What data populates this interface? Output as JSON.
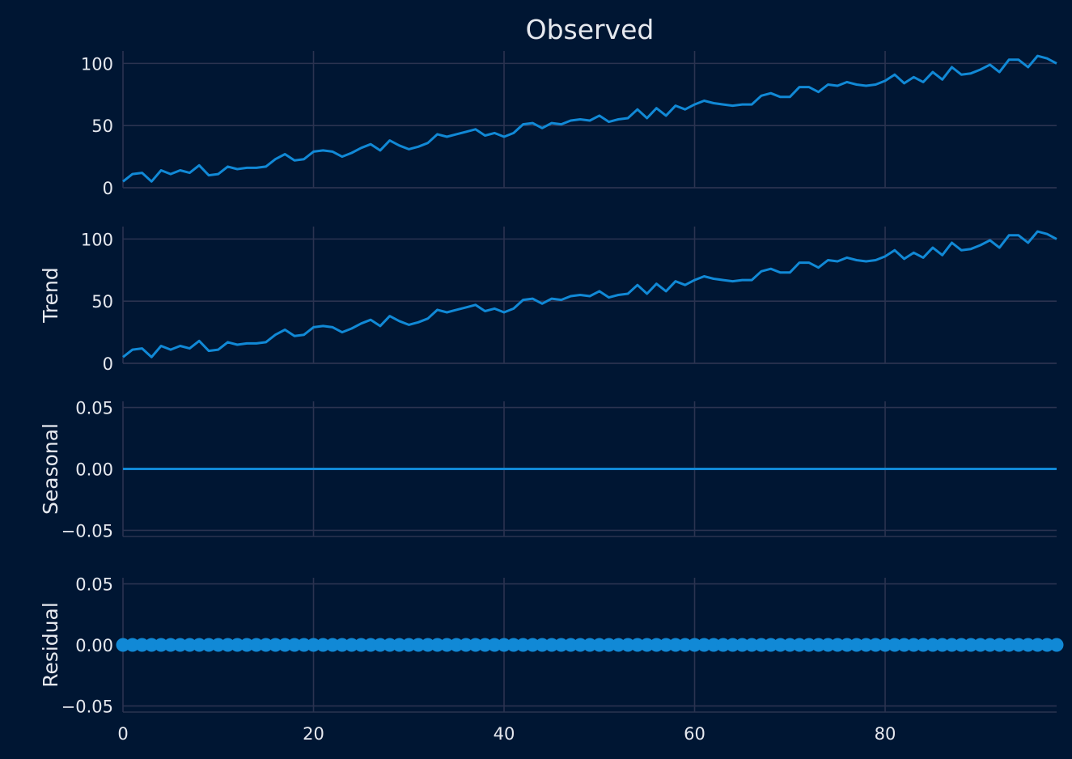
{
  "chart_data": {
    "type": "line",
    "title": "Observed",
    "colors": {
      "background": "#001633",
      "line": "#1189d6",
      "grid": "#2b3350",
      "text": "#e6e9ef"
    },
    "grid": true,
    "x": {
      "range": [
        0,
        98
      ],
      "ticks": [
        0,
        20,
        40,
        60,
        80
      ],
      "tick_labels": [
        "0",
        "20",
        "40",
        "60",
        "80"
      ]
    },
    "panels": [
      {
        "id": "observed",
        "ylabel": "",
        "ylim": [
          0,
          110
        ],
        "yticks": [
          0,
          50,
          100
        ],
        "ytick_labels": [
          "0",
          "50",
          "100"
        ],
        "kind": "line",
        "values": [
          5,
          11,
          12,
          5,
          14,
          11,
          14,
          12,
          18,
          10,
          11,
          17,
          15,
          16,
          16,
          17,
          23,
          27,
          22,
          23,
          29,
          30,
          29,
          25,
          28,
          32,
          35,
          30,
          38,
          34,
          31,
          33,
          36,
          43,
          41,
          43,
          45,
          47,
          42,
          44,
          41,
          44,
          51,
          52,
          48,
          52,
          51,
          54,
          55,
          54,
          58,
          53,
          55,
          56,
          63,
          56,
          64,
          58,
          66,
          63,
          67,
          70,
          68,
          67,
          66,
          67,
          67,
          74,
          76,
          73,
          73,
          81,
          81,
          77,
          83,
          82,
          85,
          83,
          82,
          83,
          86,
          91,
          84,
          89,
          85,
          93,
          87,
          97,
          91,
          92,
          95,
          99,
          93,
          103,
          103,
          97,
          106,
          104,
          100
        ]
      },
      {
        "id": "trend",
        "ylabel": "Trend",
        "ylim": [
          0,
          110
        ],
        "yticks": [
          0,
          50,
          100
        ],
        "ytick_labels": [
          "0",
          "50",
          "100"
        ],
        "kind": "line",
        "values": [
          5,
          11,
          12,
          5,
          14,
          11,
          14,
          12,
          18,
          10,
          11,
          17,
          15,
          16,
          16,
          17,
          23,
          27,
          22,
          23,
          29,
          30,
          29,
          25,
          28,
          32,
          35,
          30,
          38,
          34,
          31,
          33,
          36,
          43,
          41,
          43,
          45,
          47,
          42,
          44,
          41,
          44,
          51,
          52,
          48,
          52,
          51,
          54,
          55,
          54,
          58,
          53,
          55,
          56,
          63,
          56,
          64,
          58,
          66,
          63,
          67,
          70,
          68,
          67,
          66,
          67,
          67,
          74,
          76,
          73,
          73,
          81,
          81,
          77,
          83,
          82,
          85,
          83,
          82,
          83,
          86,
          91,
          84,
          89,
          85,
          93,
          87,
          97,
          91,
          92,
          95,
          99,
          93,
          103,
          103,
          97,
          106,
          104,
          100
        ]
      },
      {
        "id": "seasonal",
        "ylabel": "Seasonal",
        "ylim": [
          -0.055,
          0.055
        ],
        "yticks": [
          -0.05,
          0,
          0.05
        ],
        "ytick_labels": [
          "−0.05",
          "0.00",
          "0.05"
        ],
        "kind": "line",
        "values": [
          0,
          0,
          0,
          0,
          0,
          0,
          0,
          0,
          0,
          0,
          0,
          0,
          0,
          0,
          0,
          0,
          0,
          0,
          0,
          0,
          0,
          0,
          0,
          0,
          0,
          0,
          0,
          0,
          0,
          0,
          0,
          0,
          0,
          0,
          0,
          0,
          0,
          0,
          0,
          0,
          0,
          0,
          0,
          0,
          0,
          0,
          0,
          0,
          0,
          0,
          0,
          0,
          0,
          0,
          0,
          0,
          0,
          0,
          0,
          0,
          0,
          0,
          0,
          0,
          0,
          0,
          0,
          0,
          0,
          0,
          0,
          0,
          0,
          0,
          0,
          0,
          0,
          0,
          0,
          0,
          0,
          0,
          0,
          0,
          0,
          0,
          0,
          0,
          0,
          0,
          0,
          0,
          0,
          0,
          0,
          0,
          0,
          0,
          0
        ]
      },
      {
        "id": "residual",
        "ylabel": "Residual",
        "ylim": [
          -0.055,
          0.055
        ],
        "yticks": [
          -0.05,
          0,
          0.05
        ],
        "ytick_labels": [
          "−0.05",
          "0.00",
          "0.05"
        ],
        "kind": "scatter",
        "values": [
          0,
          0,
          0,
          0,
          0,
          0,
          0,
          0,
          0,
          0,
          0,
          0,
          0,
          0,
          0,
          0,
          0,
          0,
          0,
          0,
          0,
          0,
          0,
          0,
          0,
          0,
          0,
          0,
          0,
          0,
          0,
          0,
          0,
          0,
          0,
          0,
          0,
          0,
          0,
          0,
          0,
          0,
          0,
          0,
          0,
          0,
          0,
          0,
          0,
          0,
          0,
          0,
          0,
          0,
          0,
          0,
          0,
          0,
          0,
          0,
          0,
          0,
          0,
          0,
          0,
          0,
          0,
          0,
          0,
          0,
          0,
          0,
          0,
          0,
          0,
          0,
          0,
          0,
          0,
          0,
          0,
          0,
          0,
          0,
          0,
          0,
          0,
          0,
          0,
          0,
          0,
          0,
          0,
          0,
          0,
          0,
          0,
          0,
          0
        ]
      }
    ]
  }
}
